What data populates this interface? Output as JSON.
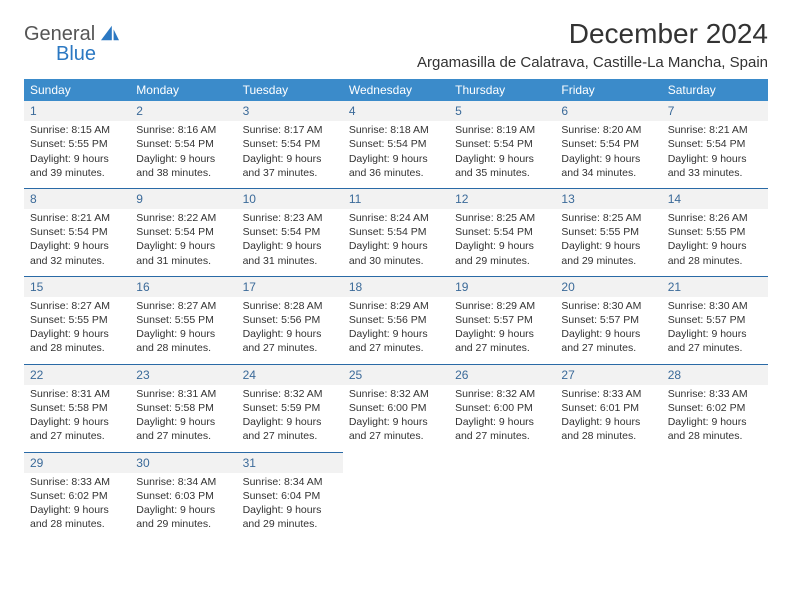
{
  "brand": {
    "name1": "General",
    "name2": "Blue",
    "logo_color": "#2b78c2"
  },
  "header": {
    "month_title": "December 2024",
    "location": "Argamasilla de Calatrava, Castille-La Mancha, Spain"
  },
  "colors": {
    "header_row_bg": "#3b8bca",
    "header_row_text": "#ffffff",
    "row_divider": "#2a6aa6",
    "daynum_bg": "#f2f2f2",
    "daynum_text": "#3b6a99",
    "body_text": "#333333",
    "background": "#ffffff"
  },
  "weekdays": [
    "Sunday",
    "Monday",
    "Tuesday",
    "Wednesday",
    "Thursday",
    "Friday",
    "Saturday"
  ],
  "weeks": [
    [
      {
        "day": "1",
        "sunrise": "8:15 AM",
        "sunset": "5:55 PM",
        "daylight": "9 hours and 39 minutes."
      },
      {
        "day": "2",
        "sunrise": "8:16 AM",
        "sunset": "5:54 PM",
        "daylight": "9 hours and 38 minutes."
      },
      {
        "day": "3",
        "sunrise": "8:17 AM",
        "sunset": "5:54 PM",
        "daylight": "9 hours and 37 minutes."
      },
      {
        "day": "4",
        "sunrise": "8:18 AM",
        "sunset": "5:54 PM",
        "daylight": "9 hours and 36 minutes."
      },
      {
        "day": "5",
        "sunrise": "8:19 AM",
        "sunset": "5:54 PM",
        "daylight": "9 hours and 35 minutes."
      },
      {
        "day": "6",
        "sunrise": "8:20 AM",
        "sunset": "5:54 PM",
        "daylight": "9 hours and 34 minutes."
      },
      {
        "day": "7",
        "sunrise": "8:21 AM",
        "sunset": "5:54 PM",
        "daylight": "9 hours and 33 minutes."
      }
    ],
    [
      {
        "day": "8",
        "sunrise": "8:21 AM",
        "sunset": "5:54 PM",
        "daylight": "9 hours and 32 minutes."
      },
      {
        "day": "9",
        "sunrise": "8:22 AM",
        "sunset": "5:54 PM",
        "daylight": "9 hours and 31 minutes."
      },
      {
        "day": "10",
        "sunrise": "8:23 AM",
        "sunset": "5:54 PM",
        "daylight": "9 hours and 31 minutes."
      },
      {
        "day": "11",
        "sunrise": "8:24 AM",
        "sunset": "5:54 PM",
        "daylight": "9 hours and 30 minutes."
      },
      {
        "day": "12",
        "sunrise": "8:25 AM",
        "sunset": "5:54 PM",
        "daylight": "9 hours and 29 minutes."
      },
      {
        "day": "13",
        "sunrise": "8:25 AM",
        "sunset": "5:55 PM",
        "daylight": "9 hours and 29 minutes."
      },
      {
        "day": "14",
        "sunrise": "8:26 AM",
        "sunset": "5:55 PM",
        "daylight": "9 hours and 28 minutes."
      }
    ],
    [
      {
        "day": "15",
        "sunrise": "8:27 AM",
        "sunset": "5:55 PM",
        "daylight": "9 hours and 28 minutes."
      },
      {
        "day": "16",
        "sunrise": "8:27 AM",
        "sunset": "5:55 PM",
        "daylight": "9 hours and 28 minutes."
      },
      {
        "day": "17",
        "sunrise": "8:28 AM",
        "sunset": "5:56 PM",
        "daylight": "9 hours and 27 minutes."
      },
      {
        "day": "18",
        "sunrise": "8:29 AM",
        "sunset": "5:56 PM",
        "daylight": "9 hours and 27 minutes."
      },
      {
        "day": "19",
        "sunrise": "8:29 AM",
        "sunset": "5:57 PM",
        "daylight": "9 hours and 27 minutes."
      },
      {
        "day": "20",
        "sunrise": "8:30 AM",
        "sunset": "5:57 PM",
        "daylight": "9 hours and 27 minutes."
      },
      {
        "day": "21",
        "sunrise": "8:30 AM",
        "sunset": "5:57 PM",
        "daylight": "9 hours and 27 minutes."
      }
    ],
    [
      {
        "day": "22",
        "sunrise": "8:31 AM",
        "sunset": "5:58 PM",
        "daylight": "9 hours and 27 minutes."
      },
      {
        "day": "23",
        "sunrise": "8:31 AM",
        "sunset": "5:58 PM",
        "daylight": "9 hours and 27 minutes."
      },
      {
        "day": "24",
        "sunrise": "8:32 AM",
        "sunset": "5:59 PM",
        "daylight": "9 hours and 27 minutes."
      },
      {
        "day": "25",
        "sunrise": "8:32 AM",
        "sunset": "6:00 PM",
        "daylight": "9 hours and 27 minutes."
      },
      {
        "day": "26",
        "sunrise": "8:32 AM",
        "sunset": "6:00 PM",
        "daylight": "9 hours and 27 minutes."
      },
      {
        "day": "27",
        "sunrise": "8:33 AM",
        "sunset": "6:01 PM",
        "daylight": "9 hours and 28 minutes."
      },
      {
        "day": "28",
        "sunrise": "8:33 AM",
        "sunset": "6:02 PM",
        "daylight": "9 hours and 28 minutes."
      }
    ],
    [
      {
        "day": "29",
        "sunrise": "8:33 AM",
        "sunset": "6:02 PM",
        "daylight": "9 hours and 28 minutes."
      },
      {
        "day": "30",
        "sunrise": "8:34 AM",
        "sunset": "6:03 PM",
        "daylight": "9 hours and 29 minutes."
      },
      {
        "day": "31",
        "sunrise": "8:34 AM",
        "sunset": "6:04 PM",
        "daylight": "9 hours and 29 minutes."
      },
      null,
      null,
      null,
      null
    ]
  ],
  "labels": {
    "sunrise_prefix": "Sunrise: ",
    "sunset_prefix": "Sunset: ",
    "daylight_prefix": "Daylight: "
  }
}
